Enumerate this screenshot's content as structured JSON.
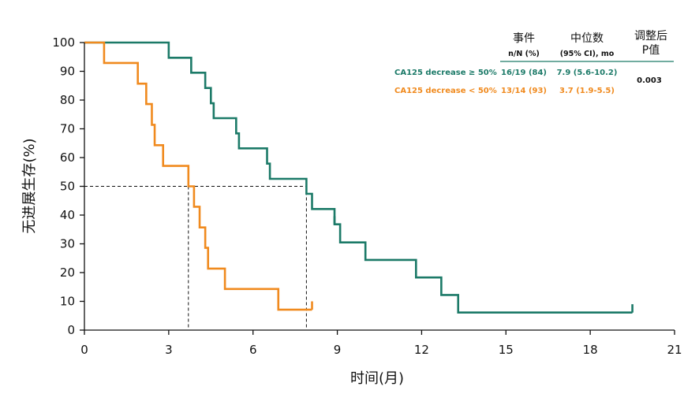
{
  "chart_data": {
    "type": "line",
    "subtype": "kaplan-meier-step",
    "xlabel": "时间(月)",
    "ylabel": "无进展生存(%)",
    "xlim": [
      0,
      21
    ],
    "ylim": [
      0,
      100
    ],
    "x_ticks": [
      "0",
      "3",
      "6",
      "9",
      "12",
      "15",
      "18",
      "21"
    ],
    "y_ticks": [
      "0",
      "10",
      "20",
      "30",
      "40",
      "50",
      "60",
      "70",
      "80",
      "90",
      "100"
    ],
    "grid": false,
    "legend_position": "top-right",
    "series": [
      {
        "name": "CA125 decrease ≥ 50%",
        "color": "#1c7a68",
        "events": "16/19 (84)",
        "median": "7.9 (5.6-10.2)",
        "median_x": 7.9,
        "steps": [
          [
            0,
            100
          ],
          [
            3.0,
            94.7
          ],
          [
            3.8,
            89.5
          ],
          [
            4.3,
            84.2
          ],
          [
            4.5,
            78.9
          ],
          [
            4.6,
            73.7
          ],
          [
            5.4,
            68.4
          ],
          [
            5.5,
            63.2
          ],
          [
            6.5,
            57.9
          ],
          [
            6.6,
            52.6
          ],
          [
            7.9,
            47.4
          ],
          [
            8.1,
            42.1
          ],
          [
            8.9,
            36.8
          ],
          [
            9.1,
            30.5
          ],
          [
            10.0,
            24.4
          ],
          [
            11.8,
            18.3
          ],
          [
            12.7,
            12.2
          ],
          [
            13.3,
            6.1
          ],
          [
            19.5,
            6.1
          ]
        ],
        "censor": [
          [
            8.9,
            39.6
          ],
          [
            19.5,
            9.0
          ]
        ]
      },
      {
        "name": "CA125 decrease < 50%",
        "color": "#f08a1e",
        "events": "13/14 (93)",
        "median": "3.7 (1.9-5.5)",
        "median_x": 3.7,
        "steps": [
          [
            0,
            100
          ],
          [
            0.7,
            92.9
          ],
          [
            1.9,
            85.7
          ],
          [
            2.2,
            78.6
          ],
          [
            2.4,
            71.4
          ],
          [
            2.5,
            64.3
          ],
          [
            2.8,
            57.1
          ],
          [
            3.7,
            50.0
          ],
          [
            3.9,
            42.9
          ],
          [
            4.1,
            35.7
          ],
          [
            4.3,
            28.6
          ],
          [
            4.4,
            21.4
          ],
          [
            5.0,
            14.3
          ],
          [
            6.9,
            7.1
          ],
          [
            8.1,
            7.1
          ]
        ],
        "censor": [
          [
            8.1,
            10.0
          ]
        ]
      }
    ],
    "median_reference_y": 50,
    "table": {
      "col1_header": "事件",
      "col1_sub": "n/N (%)",
      "col2_header": "中位数",
      "col2_sub": "(95% CI), mo",
      "col3_header_line1": "调整后",
      "col3_header_line2": "P值",
      "p_value": "0.003"
    }
  }
}
